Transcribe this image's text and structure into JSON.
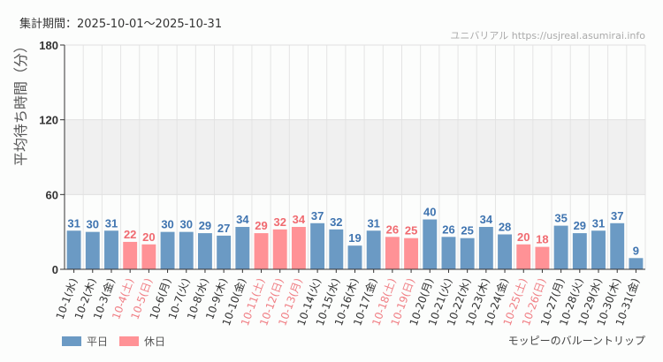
{
  "header": {
    "period": "集計期間：2025-10-01～2025-10-31",
    "credit": "ユニバリアル  https://usjreal.asumirai.info"
  },
  "footer": {
    "attraction": "モッピーのバルーントリップ"
  },
  "colors": {
    "weekday": "#6b9ac4",
    "holiday": "#ff9296",
    "weekday_text": "#3f74b0",
    "holiday_text": "#f06a70"
  },
  "chart_data": {
    "type": "bar",
    "ylabel": "平均待ち時間（分）",
    "ylim": [
      0,
      180
    ],
    "yticks": [
      0,
      60,
      120,
      180
    ],
    "shaded_band": [
      60,
      120
    ],
    "grid": true,
    "legend_position": "bottom-left",
    "legend": [
      {
        "key": "weekday",
        "label": "平日"
      },
      {
        "key": "holiday",
        "label": "休日"
      }
    ],
    "categories": [
      "10-1(水)",
      "10-2(木)",
      "10-3(金)",
      "10-4(土)",
      "10-5(日)",
      "10-6(月)",
      "10-7(火)",
      "10-8(水)",
      "10-9(木)",
      "10-10(金)",
      "10-11(土)",
      "10-12(日)",
      "10-13(月)",
      "10-14(火)",
      "10-15(水)",
      "10-16(木)",
      "10-17(金)",
      "10-18(土)",
      "10-19(日)",
      "10-20(月)",
      "10-21(火)",
      "10-22(水)",
      "10-23(木)",
      "10-24(金)",
      "10-25(土)",
      "10-26(日)",
      "10-27(月)",
      "10-28(火)",
      "10-29(水)",
      "10-30(木)",
      "10-31(金)"
    ],
    "values": [
      31,
      30,
      31,
      22,
      20,
      30,
      30,
      29,
      27,
      34,
      29,
      32,
      34,
      37,
      32,
      19,
      31,
      26,
      25,
      40,
      26,
      25,
      34,
      28,
      20,
      18,
      35,
      29,
      31,
      37,
      9
    ],
    "day_type": [
      "weekday",
      "weekday",
      "weekday",
      "holiday",
      "holiday",
      "weekday",
      "weekday",
      "weekday",
      "weekday",
      "weekday",
      "holiday",
      "holiday",
      "holiday",
      "weekday",
      "weekday",
      "weekday",
      "weekday",
      "holiday",
      "holiday",
      "weekday",
      "weekday",
      "weekday",
      "weekday",
      "weekday",
      "holiday",
      "holiday",
      "weekday",
      "weekday",
      "weekday",
      "weekday",
      "weekday"
    ]
  }
}
